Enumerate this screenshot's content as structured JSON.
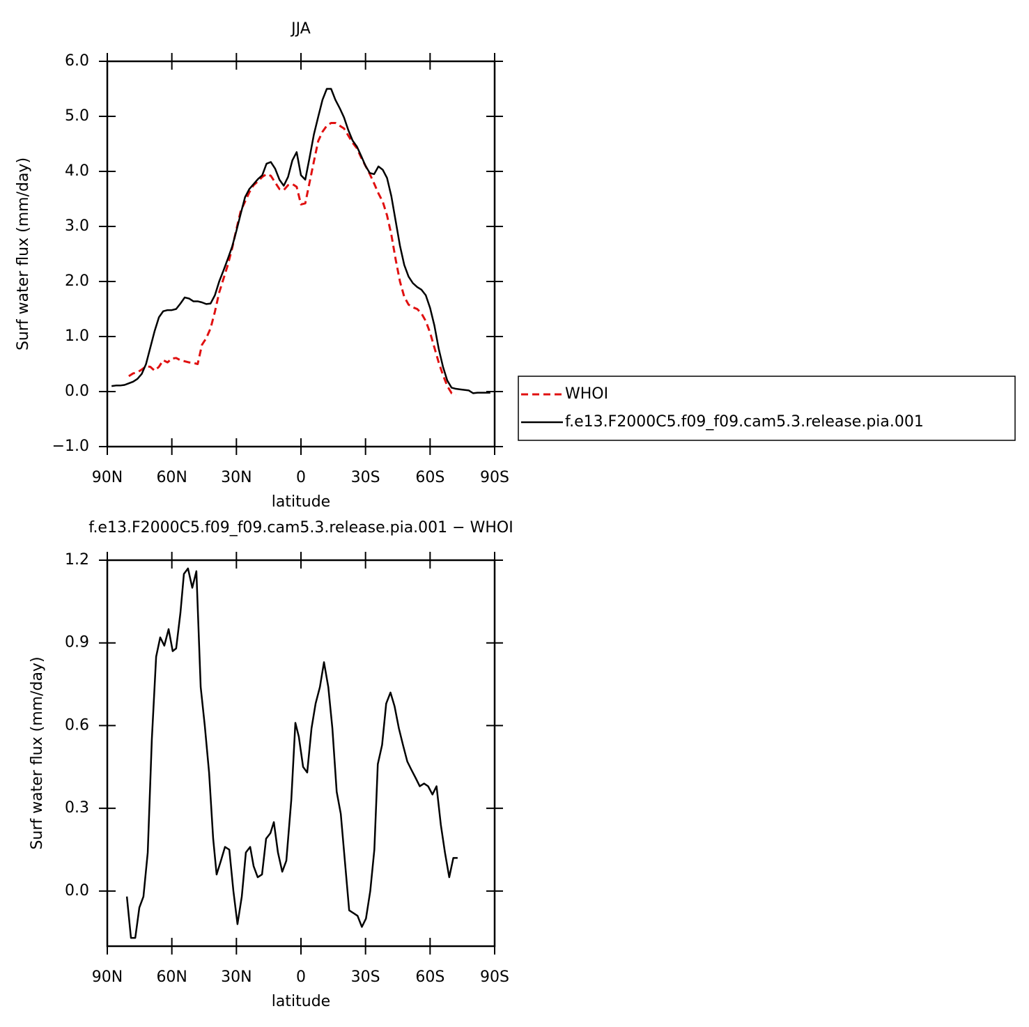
{
  "chart_data": [
    {
      "type": "line",
      "title": "JJA",
      "xlabel": "latitude",
      "ylabel": "Surf water flux (mm/day)",
      "legend": "right",
      "x": [
        88,
        86,
        84,
        82,
        80,
        78,
        76,
        74,
        72,
        70,
        68,
        66,
        64,
        62,
        60,
        58,
        56,
        54,
        52,
        50,
        48,
        46,
        44,
        42,
        40,
        38,
        36,
        34,
        32,
        30,
        28,
        26,
        24,
        22,
        20,
        18,
        16,
        14,
        12,
        10,
        8,
        6,
        4,
        2,
        0,
        -2,
        -4,
        -6,
        -8,
        -10,
        -12,
        -14,
        -16,
        -18,
        -20,
        -22,
        -24,
        -26,
        -28,
        -30,
        -32,
        -34,
        -36,
        -38,
        -40,
        -42,
        -44,
        -46,
        -48,
        -50,
        -52,
        -54,
        -56,
        -58,
        -60,
        -62,
        -64,
        -66,
        -68,
        -70,
        -72,
        -74,
        -76,
        -78,
        -80,
        -82,
        -84,
        -86,
        -88
      ],
      "series": [
        {
          "name": "WHOI",
          "color": "#e01010",
          "dashed": true,
          "values": [
            null,
            null,
            null,
            null,
            0.28,
            0.33,
            0.35,
            0.4,
            0.46,
            0.45,
            0.38,
            0.45,
            0.57,
            0.53,
            0.6,
            0.61,
            0.57,
            0.55,
            0.53,
            0.52,
            0.5,
            0.85,
            0.97,
            1.15,
            1.45,
            1.8,
            2.05,
            2.3,
            2.6,
            2.95,
            3.28,
            3.45,
            3.62,
            3.75,
            3.82,
            3.9,
            3.95,
            3.92,
            3.8,
            3.68,
            3.66,
            3.75,
            3.77,
            3.72,
            3.4,
            3.42,
            3.8,
            4.18,
            4.55,
            4.72,
            4.83,
            4.88,
            4.88,
            4.83,
            4.78,
            4.65,
            4.52,
            4.42,
            4.25,
            4.1,
            3.95,
            3.78,
            3.6,
            3.45,
            3.2,
            2.85,
            2.4,
            2.0,
            1.72,
            1.58,
            1.53,
            1.5,
            1.42,
            1.28,
            1.07,
            0.8,
            0.53,
            0.3,
            0.1,
            -0.03,
            -0.06,
            null,
            null,
            null,
            null,
            null,
            null,
            null,
            null
          ]
        },
        {
          "name": "f.e13.F2000C5.f09_f09.cam5.3.release.pia.001",
          "color": "#000000",
          "dashed": false,
          "values": [
            0.1,
            0.11,
            0.11,
            0.12,
            0.15,
            0.18,
            0.23,
            0.32,
            0.5,
            0.8,
            1.1,
            1.35,
            1.46,
            1.48,
            1.48,
            1.5,
            1.6,
            1.71,
            1.69,
            1.64,
            1.64,
            1.62,
            1.59,
            1.6,
            1.75,
            2.0,
            2.2,
            2.41,
            2.63,
            2.92,
            3.23,
            3.53,
            3.68,
            3.77,
            3.86,
            3.93,
            4.14,
            4.17,
            4.05,
            3.85,
            3.74,
            3.9,
            4.2,
            4.35,
            3.93,
            3.85,
            4.25,
            4.67,
            4.99,
            5.3,
            5.5,
            5.5,
            5.3,
            5.15,
            4.98,
            4.75,
            4.56,
            4.45,
            4.28,
            4.1,
            3.97,
            3.95,
            4.09,
            4.03,
            3.88,
            3.55,
            3.1,
            2.65,
            2.3,
            2.09,
            1.97,
            1.9,
            1.85,
            1.75,
            1.52,
            1.2,
            0.78,
            0.45,
            0.2,
            0.07,
            0.05,
            0.04,
            0.03,
            0.02,
            -0.03,
            -0.02,
            -0.02,
            -0.02,
            -0.02
          ]
        }
      ],
      "xlim": [
        90,
        -90
      ],
      "xticks": [
        {
          "value": 90,
          "label": "90N"
        },
        {
          "value": 60,
          "label": "60N"
        },
        {
          "value": 30,
          "label": "30N"
        },
        0,
        {
          "value": -30,
          "label": "30S"
        },
        {
          "value": -60,
          "label": "60S"
        },
        {
          "value": -90,
          "label": "90S"
        }
      ],
      "ylim": [
        -1,
        6
      ],
      "yticks": [
        {
          "value": -1,
          "label": "−1.0"
        },
        {
          "value": 0,
          "label": "0.0"
        },
        {
          "value": 1,
          "label": "1.0"
        },
        {
          "value": 2,
          "label": "2.0"
        },
        {
          "value": 3,
          "label": "3.0"
        },
        {
          "value": 4,
          "label": "4.0"
        },
        {
          "value": 5,
          "label": "5.0"
        },
        {
          "value": 6,
          "label": "6.0"
        }
      ]
    },
    {
      "type": "line",
      "title": "f.e13.F2000C5.f09_f09.cam5.3.release.pia.001 − WHOI",
      "xlabel": "latitude",
      "ylabel": "Surf water flux (mm/day)",
      "x": [
        80.9,
        79,
        77,
        75.1,
        73.2,
        71.2,
        69.3,
        67.3,
        65.4,
        63.5,
        61.5,
        59.6,
        58,
        56,
        54.4,
        52.5,
        50.5,
        48.6,
        46.6,
        44.7,
        42.7,
        40.8,
        39.2,
        37.2,
        35.3,
        33.3,
        31.4,
        29.5,
        27.5,
        25.6,
        23.6,
        22,
        20.1,
        18.1,
        16.2,
        14.2,
        12.6,
        10.7,
        8.7,
        6.8,
        4.5,
        2.6,
        1,
        -1,
        -2.9,
        -4.9,
        -6.8,
        -8.8,
        -10.7,
        -12.7,
        -14.6,
        -16.6,
        -18.5,
        -20.5,
        -22.4,
        -24.4,
        -26.3,
        -28.3,
        -30.2,
        -32.2,
        -34.1,
        -35.7,
        -37.7,
        -39.6,
        -41.6,
        -43.5,
        -45.5,
        -47.4,
        -49.4,
        -51.3,
        -53.3,
        -55.2,
        -57.2,
        -59.1,
        -61.1,
        -63,
        -65,
        -66.9,
        -68.9,
        -70.8,
        -72.8
      ],
      "values": [
        -0.02,
        -0.17,
        -0.17,
        -0.06,
        -0.02,
        0.14,
        0.55,
        0.85,
        0.92,
        0.89,
        0.95,
        0.87,
        0.88,
        1.01,
        1.15,
        1.17,
        1.1,
        1.16,
        0.74,
        0.6,
        0.43,
        0.19,
        0.06,
        0.11,
        0.16,
        0.15,
        0.0,
        -0.12,
        -0.02,
        0.14,
        0.16,
        0.09,
        0.05,
        0.06,
        0.19,
        0.21,
        0.25,
        0.14,
        0.07,
        0.11,
        0.33,
        0.61,
        0.56,
        0.45,
        0.43,
        0.59,
        0.68,
        0.74,
        0.83,
        0.74,
        0.59,
        0.36,
        0.28,
        0.1,
        -0.07,
        -0.08,
        -0.09,
        -0.13,
        -0.1,
        0.0,
        0.15,
        0.46,
        0.53,
        0.68,
        0.72,
        0.67,
        0.59,
        0.53,
        0.47,
        0.44,
        0.41,
        0.38,
        0.39,
        0.38,
        0.35,
        0.38,
        0.24,
        0.14,
        0.05,
        0.12,
        0.12
      ],
      "color": "#000000",
      "xlim": [
        90,
        -90
      ],
      "xticks": [
        {
          "value": 90,
          "label": "90N"
        },
        {
          "value": 60,
          "label": "60N"
        },
        {
          "value": 30,
          "label": "30N"
        },
        0,
        {
          "value": -30,
          "label": "30S"
        },
        {
          "value": -60,
          "label": "60S"
        },
        {
          "value": -90,
          "label": "90S"
        }
      ],
      "ylim": [
        -0.2,
        1.2
      ],
      "yticks": [
        {
          "value": 0,
          "label": "0.0"
        },
        0.3,
        0.6,
        0.9,
        1.2
      ]
    }
  ]
}
